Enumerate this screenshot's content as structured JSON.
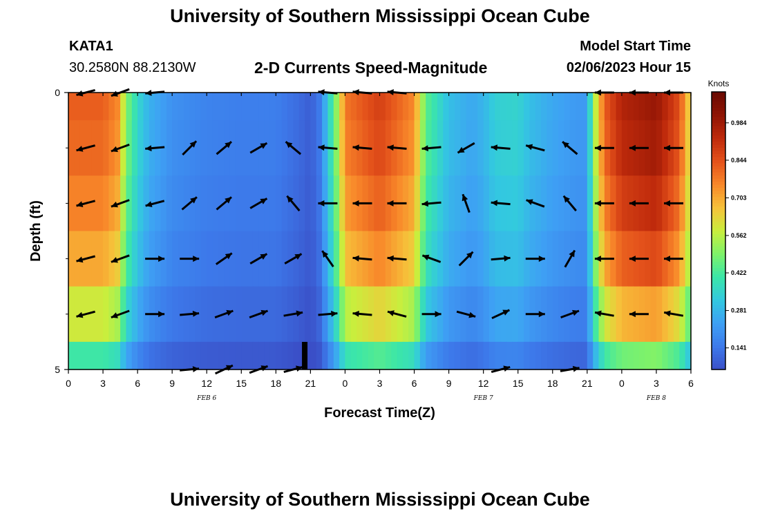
{
  "page": {
    "title_top": "University of Southern Mississippi Ocean Cube",
    "title_bottom": "University of Southern Mississippi Ocean Cube",
    "station": "KATA1",
    "coords": "30.2580N  88.2130W",
    "plot_title": "2-D Currents Speed-Magnitude",
    "model_label": "Model Start Time",
    "model_time": "02/06/2023 Hour 15"
  },
  "chart_data": {
    "type": "heatmap",
    "title": "2-D Currents Speed-Magnitude",
    "xlabel": "Forecast Time(Z)",
    "ylabel": "Depth (ft)",
    "x_ticks": [
      "0",
      "3",
      "6",
      "9",
      "12",
      "15",
      "18",
      "21",
      "0",
      "3",
      "6",
      "9",
      "12",
      "15",
      "18",
      "21",
      "0",
      "3",
      "6"
    ],
    "date_labels": [
      {
        "label": "FEB 6",
        "hour": 12
      },
      {
        "label": "FEB 7",
        "hour": 36
      },
      {
        "label": "FEB 8",
        "hour": 51
      }
    ],
    "y_ticks": [
      0,
      5
    ],
    "ylim": [
      0,
      5
    ],
    "xlim_hours": [
      0,
      54
    ],
    "current_time_hour": 20.5,
    "colorbar": {
      "unit": "Knots",
      "ticks": [
        0.141,
        0.281,
        0.422,
        0.562,
        0.703,
        0.844,
        0.984
      ],
      "range": [
        0.06,
        1.1
      ],
      "colors": [
        "#3a4fc7",
        "#3d79ea",
        "#3ea0f4",
        "#33c8e0",
        "#3be6a8",
        "#7ef26a",
        "#c9ee3d",
        "#f6c23a",
        "#f8882a",
        "#e4521b",
        "#bf2a0c",
        "#8f1404",
        "#6a0a02"
      ]
    },
    "depth_levels": [
      0,
      1,
      2,
      3,
      4,
      5
    ],
    "speed_profile_hours": [
      0,
      3,
      4.3,
      5,
      6,
      7,
      9,
      12,
      15,
      18,
      19,
      20,
      21,
      21.8,
      22.5,
      23.5,
      24,
      27,
      30,
      31,
      33,
      35,
      36,
      37,
      39,
      40,
      42,
      44,
      45,
      45.5,
      46.5,
      48,
      51,
      53,
      54
    ],
    "speed_profile_knots": [
      0.82,
      0.82,
      0.75,
      0.5,
      0.36,
      0.27,
      0.2,
      0.17,
      0.16,
      0.16,
      0.14,
      0.12,
      0.09,
      0.15,
      0.32,
      0.58,
      0.78,
      0.88,
      0.75,
      0.45,
      0.3,
      0.25,
      0.28,
      0.34,
      0.35,
      0.3,
      0.25,
      0.22,
      0.22,
      0.5,
      0.82,
      0.95,
      1.0,
      0.85,
      0.6
    ],
    "depth_factors": [
      1.0,
      0.98,
      0.93,
      0.86,
      0.72,
      0.5
    ],
    "arrow_depths": [
      0,
      1,
      2,
      3,
      4,
      5
    ],
    "arrow_hours": [
      1.5,
      4.5,
      7.5,
      10.5,
      13.5,
      16.5,
      19.5,
      22.5,
      25.5,
      28.5,
      31.5,
      34.5,
      37.5,
      40.5,
      43.5,
      46.5,
      49.5,
      52.5
    ],
    "arrow_angles_deg": [
      [
        195,
        200,
        185,
        0,
        0,
        0,
        0,
        175,
        175,
        175,
        0,
        0,
        0,
        0,
        0,
        180,
        180,
        180
      ],
      [
        195,
        200,
        185,
        45,
        40,
        30,
        140,
        175,
        175,
        175,
        185,
        210,
        175,
        165,
        140,
        180,
        180,
        180
      ],
      [
        195,
        200,
        195,
        40,
        40,
        30,
        130,
        180,
        180,
        180,
        185,
        110,
        175,
        160,
        130,
        180,
        180,
        180
      ],
      [
        195,
        200,
        0,
        0,
        35,
        30,
        30,
        125,
        175,
        175,
        160,
        45,
        5,
        0,
        60,
        180,
        180,
        180
      ],
      [
        195,
        200,
        0,
        5,
        20,
        20,
        10,
        5,
        175,
        165,
        0,
        -15,
        25,
        0,
        20,
        170,
        180,
        170
      ],
      [
        0,
        0,
        0,
        5,
        25,
        20,
        15,
        0,
        0,
        0,
        0,
        0,
        15,
        0,
        10,
        0,
        0,
        0
      ]
    ],
    "arrow_lengths": [
      [
        28,
        28,
        28,
        0,
        0,
        0,
        0,
        28,
        28,
        28,
        0,
        0,
        0,
        0,
        0,
        28,
        28,
        28
      ],
      [
        28,
        28,
        28,
        28,
        28,
        28,
        28,
        28,
        28,
        28,
        28,
        28,
        28,
        28,
        28,
        28,
        28,
        28
      ],
      [
        28,
        28,
        28,
        28,
        28,
        28,
        28,
        28,
        28,
        28,
        28,
        28,
        28,
        28,
        28,
        28,
        28,
        28
      ],
      [
        28,
        28,
        28,
        28,
        28,
        28,
        28,
        28,
        28,
        28,
        28,
        28,
        28,
        28,
        28,
        28,
        28,
        28
      ],
      [
        28,
        28,
        28,
        28,
        28,
        28,
        28,
        28,
        28,
        28,
        28,
        28,
        28,
        28,
        28,
        28,
        28,
        28
      ],
      [
        0,
        0,
        0,
        28,
        28,
        28,
        28,
        0,
        0,
        0,
        0,
        0,
        28,
        0,
        28,
        0,
        0,
        0
      ]
    ]
  }
}
